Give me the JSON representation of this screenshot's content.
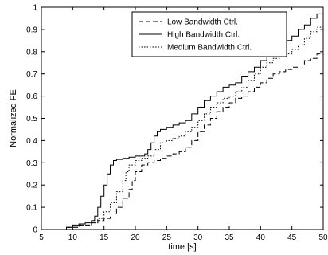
{
  "chart_data": {
    "type": "line",
    "title": "",
    "xlabel": "time [s]",
    "ylabel": "Normalized FE",
    "xlim": [
      5,
      50
    ],
    "ylim": [
      0,
      1
    ],
    "x_ticks": [
      "5",
      "10",
      "15",
      "20",
      "25",
      "30",
      "35",
      "40",
      "45",
      "50"
    ],
    "y_ticks": [
      "0",
      "0.1",
      "0.2",
      "0.3",
      "0.4",
      "0.5",
      "0.6",
      "0.7",
      "0.8",
      "0.9",
      "1"
    ],
    "grid": false,
    "legend_position": "top-right",
    "step": true,
    "series": [
      {
        "name": "Low Bandwidth Ctrl.",
        "style": "dashed",
        "color": "#000000",
        "points": [
          [
            7,
            0
          ],
          [
            9,
            0.01
          ],
          [
            11,
            0.02
          ],
          [
            13,
            0.03
          ],
          [
            14,
            0.04
          ],
          [
            15,
            0.05
          ],
          [
            16,
            0.07
          ],
          [
            17,
            0.1
          ],
          [
            18,
            0.14
          ],
          [
            19,
            0.18
          ],
          [
            19.5,
            0.22
          ],
          [
            20,
            0.26
          ],
          [
            21,
            0.29
          ],
          [
            22,
            0.3
          ],
          [
            23,
            0.31
          ],
          [
            24,
            0.32
          ],
          [
            25,
            0.33
          ],
          [
            26,
            0.34
          ],
          [
            27,
            0.35
          ],
          [
            28,
            0.37
          ],
          [
            29,
            0.4
          ],
          [
            30,
            0.44
          ],
          [
            31,
            0.47
          ],
          [
            32,
            0.5
          ],
          [
            33,
            0.53
          ],
          [
            34,
            0.55
          ],
          [
            35,
            0.57
          ],
          [
            36,
            0.59
          ],
          [
            37,
            0.6
          ],
          [
            38,
            0.62
          ],
          [
            39,
            0.64
          ],
          [
            40,
            0.66
          ],
          [
            41,
            0.68
          ],
          [
            42,
            0.7
          ],
          [
            43,
            0.71
          ],
          [
            44,
            0.72
          ],
          [
            45,
            0.73
          ],
          [
            46,
            0.74
          ],
          [
            47,
            0.76
          ],
          [
            48,
            0.77
          ],
          [
            49,
            0.79
          ],
          [
            50,
            0.81
          ]
        ]
      },
      {
        "name": "High Bandwidth Ctrl.",
        "style": "solid",
        "color": "#000000",
        "points": [
          [
            7,
            0
          ],
          [
            9,
            0.01
          ],
          [
            10,
            0.02
          ],
          [
            11,
            0.025
          ],
          [
            12,
            0.03
          ],
          [
            13,
            0.04
          ],
          [
            13.5,
            0.06
          ],
          [
            14,
            0.1
          ],
          [
            14.5,
            0.15
          ],
          [
            15,
            0.2
          ],
          [
            15.5,
            0.25
          ],
          [
            16,
            0.29
          ],
          [
            16.5,
            0.31
          ],
          [
            17,
            0.315
          ],
          [
            18,
            0.32
          ],
          [
            19,
            0.325
          ],
          [
            20,
            0.33
          ],
          [
            21,
            0.33
          ],
          [
            21.5,
            0.34
          ],
          [
            22,
            0.36
          ],
          [
            22.5,
            0.39
          ],
          [
            23,
            0.42
          ],
          [
            23.5,
            0.44
          ],
          [
            24,
            0.45
          ],
          [
            25,
            0.46
          ],
          [
            26,
            0.47
          ],
          [
            27,
            0.48
          ],
          [
            28,
            0.49
          ],
          [
            29,
            0.52
          ],
          [
            30,
            0.55
          ],
          [
            31,
            0.58
          ],
          [
            32,
            0.6
          ],
          [
            33,
            0.62
          ],
          [
            34,
            0.64
          ],
          [
            35,
            0.65
          ],
          [
            36,
            0.66
          ],
          [
            37,
            0.69
          ],
          [
            38,
            0.71
          ],
          [
            39,
            0.73
          ],
          [
            40,
            0.76
          ],
          [
            41,
            0.79
          ],
          [
            42,
            0.81
          ],
          [
            43,
            0.83
          ],
          [
            44,
            0.85
          ],
          [
            45,
            0.87
          ],
          [
            46,
            0.9
          ],
          [
            47,
            0.92
          ],
          [
            48,
            0.95
          ],
          [
            49,
            0.97
          ],
          [
            50,
            1.0
          ]
        ]
      },
      {
        "name": "Medium Bandwidth Ctrl.",
        "style": "dotted",
        "color": "#000000",
        "points": [
          [
            7,
            0
          ],
          [
            9,
            0.01
          ],
          [
            11,
            0.02
          ],
          [
            13,
            0.03
          ],
          [
            14,
            0.05
          ],
          [
            15,
            0.08
          ],
          [
            16,
            0.12
          ],
          [
            17,
            0.17
          ],
          [
            18,
            0.22
          ],
          [
            18.5,
            0.26
          ],
          [
            19,
            0.29
          ],
          [
            20,
            0.31
          ],
          [
            21,
            0.32
          ],
          [
            22,
            0.33
          ],
          [
            23,
            0.36
          ],
          [
            24,
            0.39
          ],
          [
            25,
            0.4
          ],
          [
            26,
            0.41
          ],
          [
            27,
            0.42
          ],
          [
            28,
            0.44
          ],
          [
            29,
            0.46
          ],
          [
            30,
            0.49
          ],
          [
            31,
            0.52
          ],
          [
            32,
            0.55
          ],
          [
            33,
            0.57
          ],
          [
            34,
            0.59
          ],
          [
            35,
            0.6
          ],
          [
            36,
            0.62
          ],
          [
            37,
            0.64
          ],
          [
            38,
            0.67
          ],
          [
            39,
            0.7
          ],
          [
            40,
            0.73
          ],
          [
            41,
            0.75
          ],
          [
            42,
            0.77
          ],
          [
            43,
            0.78
          ],
          [
            44,
            0.79
          ],
          [
            45,
            0.81
          ],
          [
            46,
            0.83
          ],
          [
            47,
            0.86
          ],
          [
            48,
            0.89
          ],
          [
            49,
            0.91
          ],
          [
            50,
            0.93
          ]
        ]
      }
    ]
  }
}
